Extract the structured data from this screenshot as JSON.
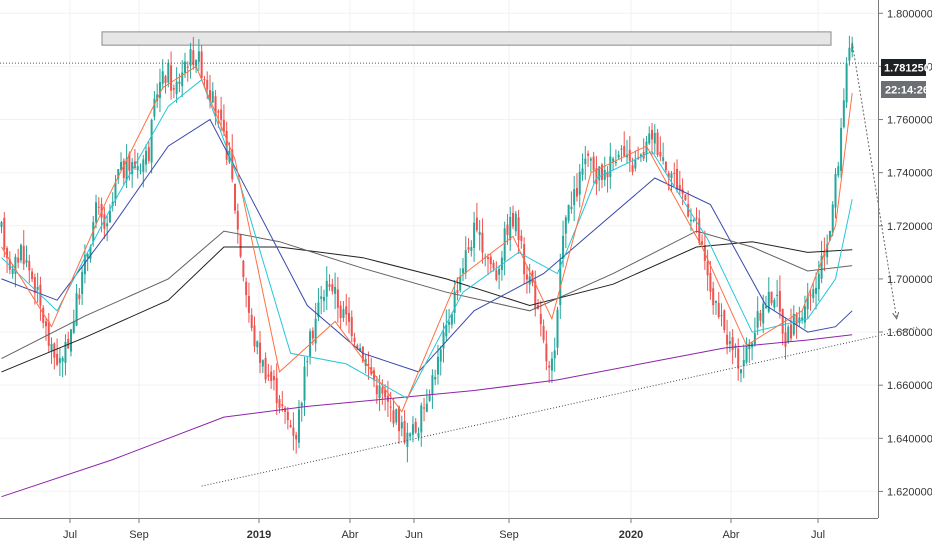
{
  "chart_data": {
    "type": "candlestick",
    "title": "",
    "xlabel": "",
    "ylabel": "",
    "ylim": [
      1.61,
      1.805
    ],
    "y_ticks": [
      "1.800000",
      "1.780000",
      "1.760000",
      "1.740000",
      "1.720000",
      "1.700000",
      "1.680000",
      "1.660000",
      "1.640000",
      "1.620000"
    ],
    "y_tick_values": [
      1.8,
      1.78,
      1.76,
      1.74,
      1.72,
      1.7,
      1.68,
      1.66,
      1.64,
      1.62
    ],
    "x_ticks": [
      {
        "label": "Jul",
        "bold": false
      },
      {
        "label": "Sep",
        "bold": false
      },
      {
        "label": "2019",
        "bold": true
      },
      {
        "label": "Abr",
        "bold": false
      },
      {
        "label": "Jun",
        "bold": false
      },
      {
        "label": "Sep",
        "bold": false
      },
      {
        "label": "2020",
        "bold": true
      },
      {
        "label": "Abr",
        "bold": false
      },
      {
        "label": "Jul",
        "bold": false
      }
    ],
    "current_price": {
      "value": 1.78125,
      "label": "1.781250",
      "countdown": "22:14:26"
    },
    "resistance_zone": {
      "low": 1.788,
      "high": 1.793
    },
    "price_path": [
      [
        0,
        1.718
      ],
      [
        4,
        1.702
      ],
      [
        7,
        1.712
      ],
      [
        12,
        1.698
      ],
      [
        18,
        1.672
      ],
      [
        22,
        1.668
      ],
      [
        26,
        1.686
      ],
      [
        30,
        1.706
      ],
      [
        34,
        1.726
      ],
      [
        38,
        1.718
      ],
      [
        42,
        1.74
      ],
      [
        46,
        1.742
      ],
      [
        50,
        1.744
      ],
      [
        53,
        1.748
      ],
      [
        56,
        1.772
      ],
      [
        60,
        1.778
      ],
      [
        62,
        1.77
      ],
      [
        66,
        1.782
      ],
      [
        70,
        1.785
      ],
      [
        74,
        1.774
      ],
      [
        78,
        1.76
      ],
      [
        82,
        1.745
      ],
      [
        86,
        1.71
      ],
      [
        90,
        1.68
      ],
      [
        94,
        1.668
      ],
      [
        98,
        1.66
      ],
      [
        102,
        1.648
      ],
      [
        106,
        1.642
      ],
      [
        110,
        1.672
      ],
      [
        114,
        1.69
      ],
      [
        118,
        1.7
      ],
      [
        122,
        1.688
      ],
      [
        126,
        1.682
      ],
      [
        130,
        1.672
      ],
      [
        134,
        1.662
      ],
      [
        138,
        1.654
      ],
      [
        142,
        1.648
      ],
      [
        146,
        1.64
      ],
      [
        150,
        1.645
      ],
      [
        154,
        1.66
      ],
      [
        158,
        1.672
      ],
      [
        162,
        1.69
      ],
      [
        166,
        1.706
      ],
      [
        170,
        1.718
      ],
      [
        174,
        1.71
      ],
      [
        178,
        1.702
      ],
      [
        182,
        1.72
      ],
      [
        185,
        1.722
      ],
      [
        188,
        1.705
      ],
      [
        191,
        1.698
      ],
      [
        194,
        1.68
      ],
      [
        197,
        1.665
      ],
      [
        199,
        1.67
      ],
      [
        202,
        1.72
      ],
      [
        206,
        1.73
      ],
      [
        210,
        1.745
      ],
      [
        214,
        1.738
      ],
      [
        218,
        1.742
      ],
      [
        222,
        1.75
      ],
      [
        226,
        1.742
      ],
      [
        230,
        1.745
      ],
      [
        234,
        1.755
      ],
      [
        238,
        1.746
      ],
      [
        242,
        1.738
      ],
      [
        246,
        1.73
      ],
      [
        250,
        1.72
      ],
      [
        254,
        1.7
      ],
      [
        258,
        1.685
      ],
      [
        262,
        1.675
      ],
      [
        266,
        1.668
      ],
      [
        270,
        1.678
      ],
      [
        274,
        1.69
      ],
      [
        278,
        1.695
      ],
      [
        282,
        1.678
      ],
      [
        286,
        1.685
      ],
      [
        290,
        1.69
      ],
      [
        294,
        1.7
      ],
      [
        298,
        1.72
      ],
      [
        301,
        1.745
      ],
      [
        304,
        1.782
      ],
      [
        306,
        1.785
      ]
    ],
    "moving_averages": [
      {
        "color": "#8e24aa",
        "points": [
          [
            0,
            1.618
          ],
          [
            40,
            1.632
          ],
          [
            80,
            1.648
          ],
          [
            110,
            1.652
          ],
          [
            140,
            1.655
          ],
          [
            170,
            1.658
          ],
          [
            200,
            1.662
          ],
          [
            230,
            1.668
          ],
          [
            260,
            1.674
          ],
          [
            290,
            1.677
          ],
          [
            306,
            1.679
          ]
        ]
      },
      {
        "color": "#212121",
        "points": [
          [
            0,
            1.665
          ],
          [
            30,
            1.678
          ],
          [
            60,
            1.692
          ],
          [
            80,
            1.712
          ],
          [
            100,
            1.712
          ],
          [
            130,
            1.708
          ],
          [
            160,
            1.7
          ],
          [
            190,
            1.69
          ],
          [
            220,
            1.698
          ],
          [
            250,
            1.712
          ],
          [
            270,
            1.714
          ],
          [
            290,
            1.71
          ],
          [
            306,
            1.711
          ]
        ]
      },
      {
        "color": "#616161",
        "points": [
          [
            0,
            1.67
          ],
          [
            30,
            1.686
          ],
          [
            60,
            1.7
          ],
          [
            80,
            1.718
          ],
          [
            100,
            1.714
          ],
          [
            130,
            1.704
          ],
          [
            160,
            1.695
          ],
          [
            190,
            1.688
          ],
          [
            220,
            1.702
          ],
          [
            250,
            1.718
          ],
          [
            270,
            1.712
          ],
          [
            290,
            1.703
          ],
          [
            306,
            1.705
          ]
        ]
      },
      {
        "color": "#3949ab",
        "points": [
          [
            0,
            1.7
          ],
          [
            20,
            1.692
          ],
          [
            40,
            1.72
          ],
          [
            60,
            1.75
          ],
          [
            75,
            1.76
          ],
          [
            90,
            1.73
          ],
          [
            110,
            1.69
          ],
          [
            130,
            1.672
          ],
          [
            150,
            1.665
          ],
          [
            170,
            1.688
          ],
          [
            195,
            1.702
          ],
          [
            215,
            1.72
          ],
          [
            235,
            1.738
          ],
          [
            255,
            1.728
          ],
          [
            275,
            1.69
          ],
          [
            290,
            1.68
          ],
          [
            300,
            1.682
          ],
          [
            306,
            1.688
          ]
        ]
      },
      {
        "color": "#26c6da",
        "points": [
          [
            0,
            1.708
          ],
          [
            20,
            1.688
          ],
          [
            40,
            1.728
          ],
          [
            60,
            1.765
          ],
          [
            72,
            1.775
          ],
          [
            86,
            1.735
          ],
          [
            104,
            1.672
          ],
          [
            124,
            1.668
          ],
          [
            146,
            1.655
          ],
          [
            166,
            1.695
          ],
          [
            186,
            1.71
          ],
          [
            200,
            1.702
          ],
          [
            214,
            1.738
          ],
          [
            234,
            1.748
          ],
          [
            254,
            1.715
          ],
          [
            270,
            1.68
          ],
          [
            290,
            1.685
          ],
          [
            300,
            1.7
          ],
          [
            306,
            1.73
          ]
        ]
      },
      {
        "color": "#ff7043",
        "points": [
          [
            0,
            1.712
          ],
          [
            18,
            1.682
          ],
          [
            38,
            1.73
          ],
          [
            58,
            1.772
          ],
          [
            70,
            1.78
          ],
          [
            84,
            1.745
          ],
          [
            100,
            1.665
          ],
          [
            120,
            1.684
          ],
          [
            144,
            1.65
          ],
          [
            164,
            1.7
          ],
          [
            184,
            1.716
          ],
          [
            198,
            1.685
          ],
          [
            212,
            1.74
          ],
          [
            232,
            1.75
          ],
          [
            252,
            1.712
          ],
          [
            268,
            1.675
          ],
          [
            288,
            1.688
          ],
          [
            300,
            1.72
          ],
          [
            306,
            1.77
          ]
        ]
      }
    ],
    "support_line": {
      "from": [
        72,
        1.622
      ],
      "to": [
        330,
        1.682
      ]
    },
    "projection_arrow": {
      "from": [
        306,
        1.789
      ],
      "to": [
        322,
        1.685
      ]
    }
  }
}
